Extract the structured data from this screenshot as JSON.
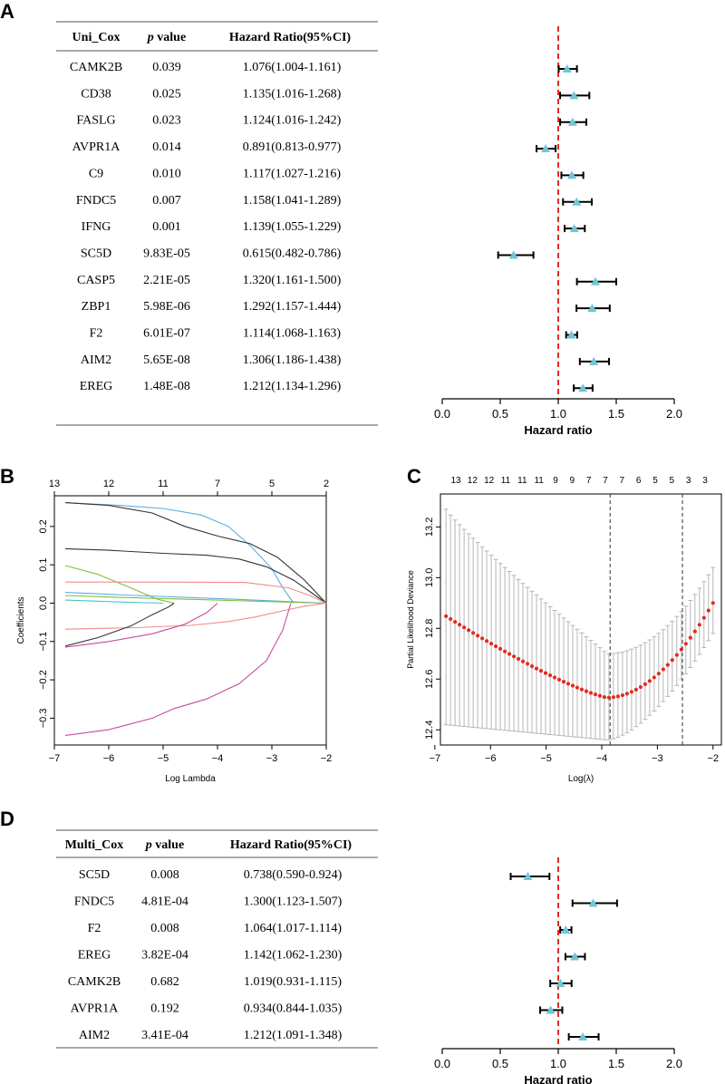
{
  "panels": {
    "A": {
      "letter": "A",
      "table": {
        "headers": {
          "gene": "Uni_Cox",
          "p_italic": "p",
          "p_rest": " value",
          "hr": "Hazard Ratio(95%CI)"
        },
        "rows": [
          {
            "gene": "CAMK2B",
            "p": "0.039",
            "hr_text": "1.076(1.004-1.161)"
          },
          {
            "gene": "CD38",
            "p": "0.025",
            "hr_text": "1.135(1.016-1.268)"
          },
          {
            "gene": "FASLG",
            "p": "0.023",
            "hr_text": "1.124(1.016-1.242)"
          },
          {
            "gene": "AVPR1A",
            "p": "0.014",
            "hr_text": "0.891(0.813-0.977)"
          },
          {
            "gene": "C9",
            "p": "0.010",
            "hr_text": "1.117(1.027-1.216)"
          },
          {
            "gene": "FNDC5",
            "p": "0.007",
            "hr_text": "1.158(1.041-1.289)"
          },
          {
            "gene": "IFNG",
            "p": "0.001",
            "hr_text": "1.139(1.055-1.229)"
          },
          {
            "gene": "SC5D",
            "p": "9.83E-05",
            "hr_text": "0.615(0.482-0.786)"
          },
          {
            "gene": "CASP5",
            "p": "2.21E-05",
            "hr_text": "1.320(1.161-1.500)"
          },
          {
            "gene": "ZBP1",
            "p": "5.98E-06",
            "hr_text": "1.292(1.157-1.444)"
          },
          {
            "gene": "F2",
            "p": "6.01E-07",
            "hr_text": "1.114(1.068-1.163)"
          },
          {
            "gene": "AIM2",
            "p": "5.65E-08",
            "hr_text": "1.306(1.186-1.438)"
          },
          {
            "gene": "EREG",
            "p": "1.48E-08",
            "hr_text": "1.212(1.134-1.296)"
          }
        ]
      }
    },
    "B": {
      "letter": "B"
    },
    "C": {
      "letter": "C"
    },
    "D": {
      "letter": "D",
      "table": {
        "headers": {
          "gene": "Multi_Cox",
          "p_italic": "p",
          "p_rest": " value",
          "hr": "Hazard Ratio(95%CI)"
        },
        "rows": [
          {
            "gene": "SC5D",
            "p": "0.008",
            "hr_text": "0.738(0.590-0.924)"
          },
          {
            "gene": "FNDC5",
            "p": "4.81E-04",
            "hr_text": "1.300(1.123-1.507)"
          },
          {
            "gene": "F2",
            "p": "0.008",
            "hr_text": "1.064(1.017-1.114)"
          },
          {
            "gene": "EREG",
            "p": "3.82E-04",
            "hr_text": "1.142(1.062-1.230)"
          },
          {
            "gene": "CAMK2B",
            "p": "0.682",
            "hr_text": "1.019(0.931-1.115)"
          },
          {
            "gene": "AVPR1A",
            "p": "0.192",
            "hr_text": "0.934(0.844-1.035)"
          },
          {
            "gene": "AIM2",
            "p": "3.41E-04",
            "hr_text": "1.212(1.091-1.348)"
          }
        ]
      }
    }
  },
  "chart_data": [
    {
      "id": "A-forest",
      "type": "scatter",
      "subtype": "forest",
      "xlabel": "Hazard ratio",
      "xlim": [
        0,
        2.0
      ],
      "xticks": [
        0.0,
        0.5,
        1.0,
        1.5,
        2.0
      ],
      "xtick_labels": [
        "0.0",
        "0.5",
        "1.0",
        "1.5",
        "2.0"
      ],
      "reference_line": 1.0,
      "colors": {
        "point": "#6fc6d8",
        "ref_line": "#e52a1f",
        "ci": "#000000"
      },
      "series": [
        {
          "name": "CAMK2B",
          "hr": 1.076,
          "lo": 1.004,
          "hi": 1.161
        },
        {
          "name": "CD38",
          "hr": 1.135,
          "lo": 1.016,
          "hi": 1.268
        },
        {
          "name": "FASLG",
          "hr": 1.124,
          "lo": 1.016,
          "hi": 1.242
        },
        {
          "name": "AVPR1A",
          "hr": 0.891,
          "lo": 0.813,
          "hi": 0.977
        },
        {
          "name": "C9",
          "hr": 1.117,
          "lo": 1.027,
          "hi": 1.216
        },
        {
          "name": "FNDC5",
          "hr": 1.158,
          "lo": 1.041,
          "hi": 1.289
        },
        {
          "name": "IFNG",
          "hr": 1.139,
          "lo": 1.055,
          "hi": 1.229
        },
        {
          "name": "SC5D",
          "hr": 0.615,
          "lo": 0.482,
          "hi": 0.786
        },
        {
          "name": "CASP5",
          "hr": 1.32,
          "lo": 1.161,
          "hi": 1.5
        },
        {
          "name": "ZBP1",
          "hr": 1.292,
          "lo": 1.157,
          "hi": 1.444
        },
        {
          "name": "F2",
          "hr": 1.114,
          "lo": 1.068,
          "hi": 1.163
        },
        {
          "name": "AIM2",
          "hr": 1.306,
          "lo": 1.186,
          "hi": 1.438
        },
        {
          "name": "EREG",
          "hr": 1.212,
          "lo": 1.134,
          "hi": 1.296
        }
      ]
    },
    {
      "id": "B-lasso-coef",
      "type": "line",
      "xlabel": "Log Lambda",
      "ylabel": "Coefficients",
      "xlim": [
        -7,
        -2
      ],
      "ylim": [
        -0.37,
        0.28
      ],
      "xticks": [
        -7,
        -6,
        -5,
        -4,
        -3,
        -2
      ],
      "xtick_labels": [
        "−7",
        "−6",
        "−5",
        "−4",
        "−3",
        "−2"
      ],
      "yticks": [
        -0.3,
        -0.2,
        -0.1,
        0.0,
        0.1,
        0.2
      ],
      "ytick_labels": [
        "−0.3",
        "−0.2",
        "−0.1",
        "0.0",
        "0.1",
        "0.2"
      ],
      "top_axis": {
        "positions": [
          -7,
          -6,
          -5,
          -4,
          -3,
          -2
        ],
        "labels": [
          "13",
          "12",
          "11",
          "7",
          "5",
          "2"
        ]
      },
      "series": [
        {
          "name": "path-1",
          "color": "#5aaee0",
          "x": [
            -6.8,
            -5.8,
            -5.0,
            -4.3,
            -3.8,
            -3.4,
            -3.0,
            -2.8,
            -2.6
          ],
          "y": [
            0.262,
            0.255,
            0.247,
            0.23,
            0.2,
            0.15,
            0.09,
            0.04,
            0
          ]
        },
        {
          "name": "path-2",
          "color": "#333333",
          "x": [
            -6.8,
            -6.0,
            -5.2,
            -4.6,
            -4.0,
            -3.4,
            -2.9,
            -2.4,
            -2.0
          ],
          "y": [
            0.262,
            0.255,
            0.235,
            0.2,
            0.175,
            0.155,
            0.12,
            0.06,
            0
          ]
        },
        {
          "name": "path-3",
          "color": "#333333",
          "x": [
            -6.8,
            -6.0,
            -5.0,
            -4.2,
            -3.6,
            -3.1,
            -2.6,
            -2.2,
            -2.0
          ],
          "y": [
            0.142,
            0.138,
            0.13,
            0.125,
            0.115,
            0.095,
            0.06,
            0.02,
            0
          ]
        },
        {
          "name": "path-4",
          "color": "#7fbf3f",
          "x": [
            -6.8,
            -6.2,
            -5.6,
            -5.1,
            -4.8
          ],
          "y": [
            0.098,
            0.075,
            0.04,
            0.01,
            0
          ]
        },
        {
          "name": "path-5",
          "color": "#f08c8c",
          "x": [
            -6.8,
            -5.0,
            -3.5,
            -2.7,
            -2.3,
            -2.0
          ],
          "y": [
            0.055,
            0.055,
            0.054,
            0.04,
            0.02,
            0
          ]
        },
        {
          "name": "path-6",
          "color": "#5aaee0",
          "x": [
            -6.8,
            -5.5,
            -4.0,
            -3.0,
            -2.0
          ],
          "y": [
            0.028,
            0.02,
            0.012,
            0.006,
            0
          ]
        },
        {
          "name": "path-7",
          "color": "#7fbf3f",
          "x": [
            -6.8,
            -6.0,
            -5.0,
            -4.0,
            -3.0,
            -2.0
          ],
          "y": [
            0.02,
            0.016,
            0.012,
            0.008,
            0.004,
            0
          ]
        },
        {
          "name": "path-8",
          "color": "#40c8c8",
          "x": [
            -6.8,
            -6.2,
            -5.6,
            -5.0
          ],
          "y": [
            0.008,
            0.005,
            0.002,
            0
          ]
        },
        {
          "name": "path-9",
          "color": "#f08c8c",
          "x": [
            -6.8,
            -5.5,
            -4.5,
            -3.8,
            -3.3,
            -2.8,
            -2.4,
            -2.0
          ],
          "y": [
            -0.068,
            -0.064,
            -0.058,
            -0.048,
            -0.036,
            -0.02,
            -0.008,
            0
          ]
        },
        {
          "name": "path-10",
          "color": "#333333",
          "x": [
            -6.8,
            -6.2,
            -5.6,
            -5.2,
            -4.9,
            -4.8
          ],
          "y": [
            -0.112,
            -0.09,
            -0.06,
            -0.03,
            -0.01,
            0
          ]
        },
        {
          "name": "path-11",
          "color": "#c84ba0",
          "x": [
            -6.8,
            -6.0,
            -5.2,
            -4.6,
            -4.2,
            -4.0
          ],
          "y": [
            -0.115,
            -0.1,
            -0.08,
            -0.055,
            -0.025,
            0
          ]
        },
        {
          "name": "path-12",
          "color": "#c84ba0",
          "x": [
            -6.8,
            -6.0,
            -5.2,
            -4.8,
            -4.2,
            -3.6,
            -3.1,
            -2.8,
            -2.65
          ],
          "y": [
            -0.345,
            -0.33,
            -0.3,
            -0.275,
            -0.25,
            -0.21,
            -0.15,
            -0.07,
            0
          ]
        }
      ]
    },
    {
      "id": "C-lasso-cv",
      "type": "scatter",
      "subtype": "errorbar",
      "xlabel": "Log(λ)",
      "ylabel": "Partial Likelihood Deviance",
      "xlim": [
        -6.9,
        -1.85
      ],
      "ylim": [
        12.34,
        13.33
      ],
      "xticks": [
        -7,
        -6,
        -5,
        -4,
        -3,
        -2
      ],
      "xtick_labels": [
        "−7",
        "−6",
        "−5",
        "−4",
        "−3",
        "−2"
      ],
      "yticks": [
        12.4,
        12.6,
        12.8,
        13.0,
        13.2
      ],
      "ytick_labels": [
        "12.4",
        "12.6",
        "12.8",
        "13.0",
        "13.2"
      ],
      "vlines": [
        -3.85,
        -2.55
      ],
      "top_axis_labels": [
        "13",
        "12",
        "12",
        "11",
        "11",
        "11",
        "9",
        "9",
        "7",
        "7",
        "7",
        "6",
        "5",
        "5",
        "3",
        "3"
      ],
      "colors": {
        "point": "#e52a1f",
        "errorbar": "#b5b5b5"
      },
      "x_start": -6.8,
      "x_end": -2.0,
      "n_points": 60,
      "y_min_x": -3.9,
      "y_min": 12.527,
      "y_at_start": 12.848,
      "y_at_end": 12.9
    },
    {
      "id": "D-forest",
      "type": "scatter",
      "subtype": "forest",
      "xlabel": "Hazard ratio",
      "xlim": [
        0,
        2.0
      ],
      "xticks": [
        0.0,
        0.5,
        1.0,
        1.5,
        2.0
      ],
      "xtick_labels": [
        "0.0",
        "0.5",
        "1.0",
        "1.5",
        "2.0"
      ],
      "reference_line": 1.0,
      "colors": {
        "point": "#6fc6d8",
        "ref_line": "#e52a1f",
        "ci": "#000000"
      },
      "series": [
        {
          "name": "SC5D",
          "hr": 0.738,
          "lo": 0.59,
          "hi": 0.924
        },
        {
          "name": "FNDC5",
          "hr": 1.3,
          "lo": 1.123,
          "hi": 1.507
        },
        {
          "name": "F2",
          "hr": 1.064,
          "lo": 1.017,
          "hi": 1.114
        },
        {
          "name": "EREG",
          "hr": 1.142,
          "lo": 1.062,
          "hi": 1.23
        },
        {
          "name": "CAMK2B",
          "hr": 1.019,
          "lo": 0.931,
          "hi": 1.115
        },
        {
          "name": "AVPR1A",
          "hr": 0.934,
          "lo": 0.844,
          "hi": 1.035
        },
        {
          "name": "AIM2",
          "hr": 1.212,
          "lo": 1.091,
          "hi": 1.348
        }
      ]
    }
  ]
}
